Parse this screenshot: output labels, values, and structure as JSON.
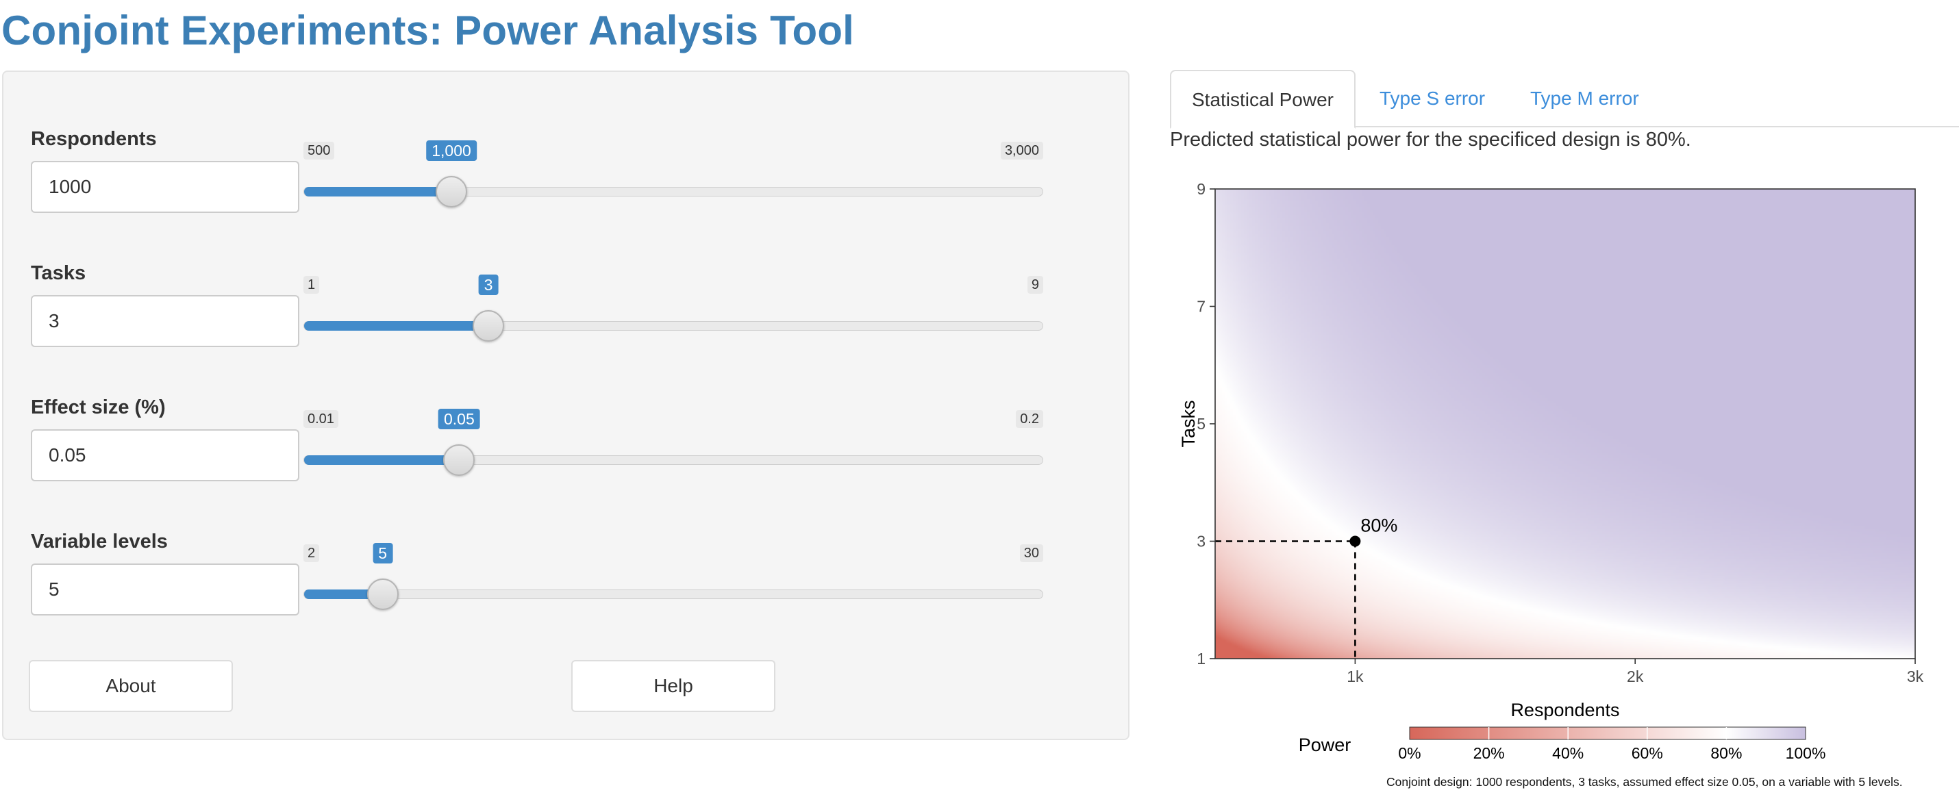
{
  "app": {
    "title": "Conjoint Experiments: Power Analysis Tool"
  },
  "controls": [
    {
      "label": "Respondents",
      "value": "1000",
      "min_label": "500",
      "max_label": "3,000",
      "current_label": "1,000",
      "min": 500,
      "max": 3000,
      "current": 1000
    },
    {
      "label": "Tasks",
      "value": "3",
      "min_label": "1",
      "max_label": "9",
      "current_label": "3",
      "min": 1,
      "max": 9,
      "current": 3
    },
    {
      "label": "Effect size (%)",
      "value": "0.05",
      "min_label": "0.01",
      "max_label": "0.2",
      "current_label": "0.05",
      "min": 0.01,
      "max": 0.2,
      "current": 0.05
    },
    {
      "label": "Variable levels",
      "value": "5",
      "min_label": "2",
      "max_label": "30",
      "current_label": "5",
      "min": 2,
      "max": 30,
      "current": 5
    }
  ],
  "buttons": {
    "about": "About",
    "help": "Help"
  },
  "tabs": [
    {
      "label": "Statistical Power",
      "active": true
    },
    {
      "label": "Type S error",
      "active": false
    },
    {
      "label": "Type M error",
      "active": false
    }
  ],
  "result_text": "Predicted statistical power for the specificed design is 80%.",
  "chart_data": {
    "type": "heatmap",
    "xlabel": "Respondents",
    "ylabel": "Tasks",
    "xlim": [
      500,
      3000
    ],
    "ylim": [
      1,
      9
    ],
    "x_ticks": [
      1000,
      2000,
      3000
    ],
    "x_tick_labels": [
      "1k",
      "2k",
      "3k"
    ],
    "y_ticks": [
      1,
      3,
      5,
      7,
      9
    ],
    "y_tick_labels": [
      "1",
      "3",
      "5",
      "7",
      "9"
    ],
    "fill": "power",
    "power_contour_80pct": {
      "respondents_times_tasks": 3000
    },
    "highlight_point": {
      "x": 1000,
      "y": 3,
      "label": "80%"
    },
    "legend": {
      "title": "Power",
      "tick_labels": [
        "0%",
        "20%",
        "40%",
        "60%",
        "80%",
        "100%"
      ],
      "low_color": "#d7675a",
      "mid_color": "#ffffff",
      "high_color": "#c8bfdf",
      "midpoint": 0.8
    },
    "grid": false
  },
  "caption": "Conjoint design: 1000 respondents, 3 tasks, assumed effect size 0.05, on a variable with 5 levels.",
  "colors": {
    "accent": "#428bca",
    "title": "#3c7fb5",
    "link": "#3c8ddb"
  }
}
